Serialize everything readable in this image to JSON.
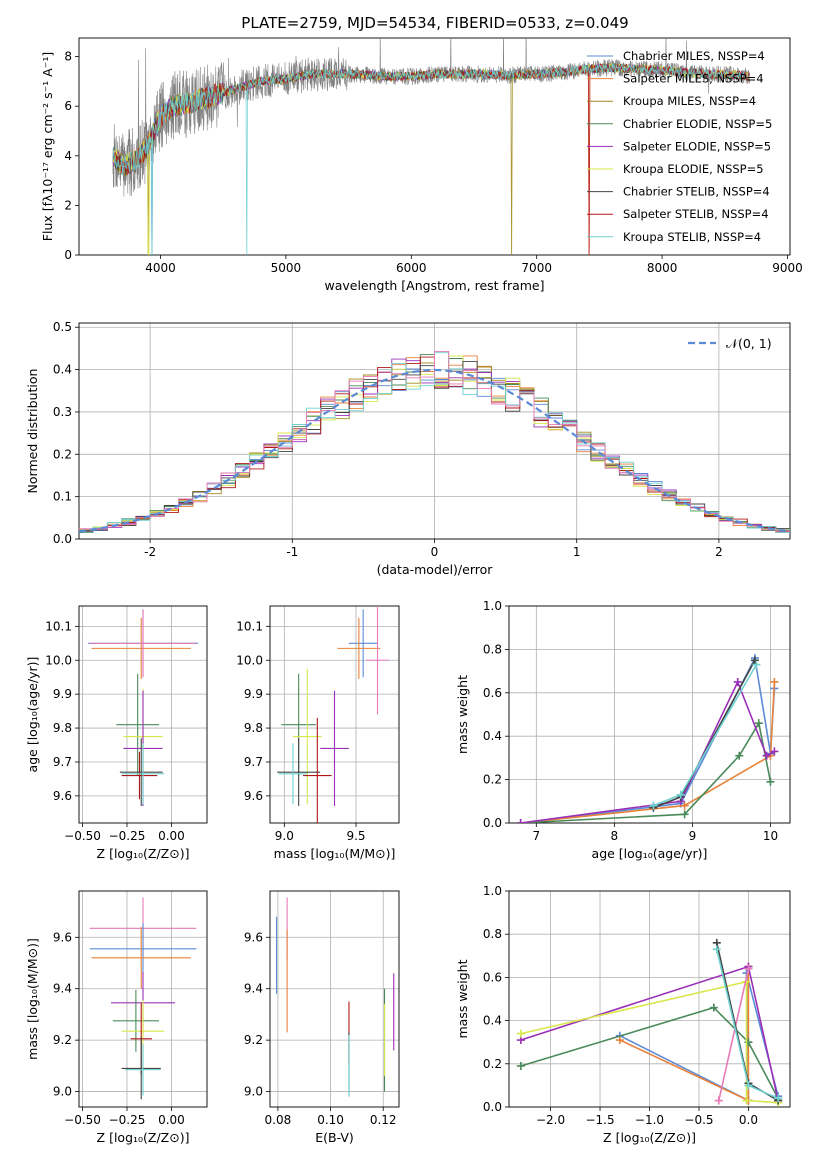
{
  "figure": {
    "title": "PLATE=2759, MJD=54534, FIBERID=0533, z=0.049"
  },
  "palette": {
    "axis": "#000000",
    "grid": "#b0b0b0",
    "spectrum_data": "#808080",
    "gauss": "#5b8bd6"
  },
  "chart_data": [
    {
      "id": "spectrum",
      "type": "line",
      "xlabel": "wavelength [Angstrom, rest frame]",
      "ylabel": "Flux [fλ10⁻¹⁷ erg cm⁻² s⁻¹ A⁻¹]",
      "xlim": [
        3350,
        9020
      ],
      "ylim": [
        0,
        8.75
      ],
      "xticks": [
        4000,
        5000,
        6000,
        7000,
        8000,
        9000
      ],
      "yticks": [
        0,
        2,
        4,
        6,
        8
      ],
      "grid": false,
      "legend_position": "top-right",
      "legend": [
        {
          "name": "Chabrier MILES, NSSP=4",
          "color": "#5b8bd6"
        },
        {
          "name": "Salpeter MILES, NSSP=4",
          "color": "#e8823a"
        },
        {
          "name": "Kroupa MILES, NSSP=4",
          "color": "#a0891e"
        },
        {
          "name": "Chabrier ELODIE, NSSP=5",
          "color": "#4a8a5a"
        },
        {
          "name": "Salpeter ELODIE, NSSP=5",
          "color": "#9b30b8"
        },
        {
          "name": "Kroupa ELODIE, NSSP=5",
          "color": "#d8e84a"
        },
        {
          "name": "Chabrier STELIB, NSSP=4",
          "color": "#444444"
        },
        {
          "name": "Salpeter STELIB, NSSP=4",
          "color": "#b01818"
        },
        {
          "name": "Kroupa STELIB, NSSP=4",
          "color": "#6fd0d0"
        }
      ],
      "continuum": {
        "x": [
          3620,
          3700,
          3800,
          3900,
          4000,
          4100,
          4200,
          4400,
          4600,
          4800,
          5000,
          5200,
          5500,
          5800,
          6000,
          6200,
          6500,
          6800,
          7000,
          7200,
          7400,
          7600,
          7800,
          8000,
          8200,
          8400,
          8600,
          8700
        ],
        "y": [
          4.0,
          3.6,
          3.8,
          4.4,
          5.6,
          6.0,
          6.1,
          6.4,
          6.7,
          7.0,
          7.1,
          7.3,
          7.3,
          7.2,
          7.2,
          7.3,
          7.3,
          7.25,
          7.3,
          7.35,
          7.5,
          7.55,
          7.5,
          7.45,
          7.35,
          7.3,
          7.25,
          7.2
        ]
      }
    },
    {
      "id": "residuals",
      "type": "line",
      "xlabel": "(data-model)/error",
      "ylabel": "Normed distribution",
      "xlim": [
        -2.5,
        2.5
      ],
      "ylim": [
        0,
        0.51
      ],
      "xticks": [
        -2,
        -1,
        0,
        1,
        2
      ],
      "yticks": [
        0.0,
        0.1,
        0.2,
        0.3,
        0.4,
        0.5
      ],
      "grid": true,
      "legend_position": "top-right",
      "gaussian_label": "𝒩(0, 1)"
    },
    {
      "id": "age_vs_Z",
      "type": "scatter",
      "xlabel": "Z [log₁₀(Z/Z⊙)]",
      "ylabel": "age  [log₁₀(age/yr)]",
      "xlim": [
        -0.52,
        0.2
      ],
      "ylim": [
        9.52,
        10.16
      ],
      "xticks": [
        -0.5,
        -0.25,
        0.0
      ],
      "xticklabels": [
        "−0.50",
        "−0.25",
        "0.00"
      ],
      "yticks": [
        9.6,
        9.7,
        9.8,
        9.9,
        10.0,
        10.1
      ],
      "grid": true,
      "points": [
        {
          "color": "#5b8bd6",
          "x": -0.16,
          "xerr": 0.31,
          "y": 10.05,
          "yerr": 0.1
        },
        {
          "color": "#e8823a",
          "x": -0.17,
          "xerr": 0.28,
          "y": 10.035,
          "yerr": 0.09
        },
        {
          "color": "#e87ab8",
          "x": -0.16,
          "xerr": 0.3,
          "y": 10.05,
          "yerr": 0.1
        },
        {
          "color": "#4a8a5a",
          "x": -0.19,
          "xerr": 0.12,
          "y": 9.81,
          "yerr": 0.15
        },
        {
          "color": "#d8e84a",
          "x": -0.16,
          "xerr": 0.11,
          "y": 9.775,
          "yerr": 0.14
        },
        {
          "color": "#9b30b8",
          "x": -0.16,
          "xerr": 0.11,
          "y": 9.74,
          "yerr": 0.17
        },
        {
          "color": "#444444",
          "x": -0.17,
          "xerr": 0.12,
          "y": 9.67,
          "yerr": 0.1
        },
        {
          "color": "#b01818",
          "x": -0.18,
          "xerr": 0.1,
          "y": 9.66,
          "yerr": 0.07
        },
        {
          "color": "#6fd0d0",
          "x": -0.16,
          "xerr": 0.12,
          "y": 9.665,
          "yerr": 0.09
        }
      ]
    },
    {
      "id": "age_vs_mass",
      "type": "scatter",
      "xlabel": "mass [log₁₀(M/M⊙)]",
      "ylabel": "",
      "xlim": [
        8.9,
        9.8
      ],
      "ylim": [
        9.52,
        10.16
      ],
      "xticks": [
        9.0,
        9.5
      ],
      "xticklabels": [
        "9.0",
        "9.5"
      ],
      "yticks": [
        9.6,
        9.7,
        9.8,
        9.9,
        10.0,
        10.1
      ],
      "grid": true,
      "points": [
        {
          "color": "#5b8bd6",
          "x": 9.55,
          "xerr": 0.1,
          "y": 10.05,
          "yerr": 0.1
        },
        {
          "color": "#e8823a",
          "x": 9.52,
          "xerr": 0.15,
          "y": 10.035,
          "yerr": 0.09
        },
        {
          "color": "#e87ab8",
          "x": 9.65,
          "xerr": 0.08,
          "y": 10.0,
          "yerr": 0.16
        },
        {
          "color": "#4a8a5a",
          "x": 9.1,
          "xerr": 0.12,
          "y": 9.81,
          "yerr": 0.15
        },
        {
          "color": "#d8e84a",
          "x": 9.16,
          "xerr": 0.1,
          "y": 9.775,
          "yerr": 0.2
        },
        {
          "color": "#9b30b8",
          "x": 9.35,
          "xerr": 0.1,
          "y": 9.74,
          "yerr": 0.17
        },
        {
          "color": "#444444",
          "x": 9.1,
          "xerr": 0.15,
          "y": 9.67,
          "yerr": 0.1
        },
        {
          "color": "#b01818",
          "x": 9.23,
          "xerr": 0.1,
          "y": 9.66,
          "yerr": 0.17
        },
        {
          "color": "#6fd0d0",
          "x": 9.06,
          "xerr": 0.1,
          "y": 9.665,
          "yerr": 0.09
        }
      ]
    },
    {
      "id": "weight_vs_age",
      "type": "line",
      "xlabel": "age  [log₁₀(age/yr)]",
      "ylabel": "mass weight",
      "xlim": [
        6.65,
        10.25
      ],
      "ylim": [
        0,
        1.0
      ],
      "xticks": [
        7,
        8,
        9,
        10
      ],
      "yticks": [
        0.0,
        0.2,
        0.4,
        0.6,
        0.8,
        1.0
      ],
      "grid": true,
      "series": [
        {
          "color": "#5b8bd6",
          "points": [
            [
              6.8,
              0.0
            ],
            [
              8.85,
              0.09
            ],
            [
              9.8,
              0.76
            ],
            [
              10.0,
              0.32
            ],
            [
              10.05,
              0.62
            ]
          ]
        },
        {
          "color": "#e8823a",
          "points": [
            [
              6.8,
              0.0
            ],
            [
              8.9,
              0.08
            ],
            [
              10.0,
              0.31
            ],
            [
              10.05,
              0.65
            ]
          ]
        },
        {
          "color": "#4a8a5a",
          "points": [
            [
              6.8,
              0.0
            ],
            [
              8.9,
              0.04
            ],
            [
              9.6,
              0.31
            ],
            [
              9.85,
              0.46
            ],
            [
              10.0,
              0.19
            ]
          ]
        },
        {
          "color": "#9b30b8",
          "points": [
            [
              6.8,
              0.0
            ],
            [
              8.85,
              0.1
            ],
            [
              9.58,
              0.65
            ],
            [
              9.95,
              0.31
            ],
            [
              10.05,
              0.33
            ]
          ]
        },
        {
          "color": "#444444",
          "points": [
            [
              8.5,
              0.07
            ],
            [
              8.85,
              0.12
            ],
            [
              9.8,
              0.75
            ]
          ]
        },
        {
          "color": "#6fd0d0",
          "points": [
            [
              8.5,
              0.08
            ],
            [
              8.85,
              0.13
            ],
            [
              9.82,
              0.73
            ]
          ]
        }
      ]
    },
    {
      "id": "mass_vs_Z",
      "type": "scatter",
      "xlabel": "Z [log₁₀(Z/Z⊙)]",
      "ylabel": "mass [log₁₀(M/M⊙)]",
      "xlim": [
        -0.52,
        0.2
      ],
      "ylim": [
        8.94,
        9.78
      ],
      "xticks": [
        -0.5,
        -0.25,
        0.0
      ],
      "xticklabels": [
        "−0.50",
        "−0.25",
        "0.00"
      ],
      "yticks": [
        9.0,
        9.2,
        9.4,
        9.6
      ],
      "grid": true,
      "points": [
        {
          "color": "#e87ab8",
          "x": -0.16,
          "xerr": 0.3,
          "y": 9.635,
          "yerr": 0.12
        },
        {
          "color": "#5b8bd6",
          "x": -0.16,
          "xerr": 0.3,
          "y": 9.555,
          "yerr": 0.1
        },
        {
          "color": "#e8823a",
          "x": -0.17,
          "xerr": 0.28,
          "y": 9.52,
          "yerr": 0.12
        },
        {
          "color": "#9b30b8",
          "x": -0.16,
          "xerr": 0.18,
          "y": 9.345,
          "yerr": 0.12
        },
        {
          "color": "#4a8a5a",
          "x": -0.2,
          "xerr": 0.13,
          "y": 9.275,
          "yerr": 0.12
        },
        {
          "color": "#d8e84a",
          "x": -0.16,
          "xerr": 0.12,
          "y": 9.235,
          "yerr": 0.12
        },
        {
          "color": "#b01818",
          "x": -0.17,
          "xerr": 0.06,
          "y": 9.205,
          "yerr": 0.14
        },
        {
          "color": "#444444",
          "x": -0.17,
          "xerr": 0.11,
          "y": 9.09,
          "yerr": 0.12
        },
        {
          "color": "#6fd0d0",
          "x": -0.16,
          "xerr": 0.1,
          "y": 9.085,
          "yerr": 0.1
        }
      ]
    },
    {
      "id": "mass_vs_EBV",
      "type": "scatter",
      "xlabel": "E(B-V)",
      "ylabel": "",
      "xlim": [
        0.077,
        0.126
      ],
      "ylim": [
        8.94,
        9.78
      ],
      "xticks": [
        0.08,
        0.1,
        0.12
      ],
      "xticklabels": [
        "0.08",
        "0.10",
        "0.12"
      ],
      "yticks": [
        9.0,
        9.2,
        9.4,
        9.6
      ],
      "grid": true,
      "points": [
        {
          "color": "#e87ab8",
          "x": 0.0835,
          "xerr": 0,
          "y": 9.635,
          "yerr": 0.12
        },
        {
          "color": "#e8823a",
          "x": 0.0835,
          "xerr": 0,
          "y": 9.43,
          "yerr": 0.2
        },
        {
          "color": "#5b8bd6",
          "x": 0.0795,
          "xerr": 0,
          "y": 9.53,
          "yerr": 0.15
        },
        {
          "color": "#9b30b8",
          "x": 0.124,
          "xerr": 0,
          "y": 9.31,
          "yerr": 0.15
        },
        {
          "color": "#4a8a5a",
          "x": 0.1205,
          "xerr": 0,
          "y": 9.2,
          "yerr": 0.2
        },
        {
          "color": "#d8e84a",
          "x": 0.1205,
          "xerr": 0,
          "y": 9.2,
          "yerr": 0.14
        },
        {
          "color": "#b01818",
          "x": 0.107,
          "xerr": 0,
          "y": 9.23,
          "yerr": 0.12
        },
        {
          "color": "#444444",
          "x": 0.107,
          "xerr": 0,
          "y": 9.11,
          "yerr": 0.12
        },
        {
          "color": "#6fd0d0",
          "x": 0.107,
          "xerr": 0,
          "y": 9.1,
          "yerr": 0.12
        }
      ]
    },
    {
      "id": "weight_vs_Z",
      "type": "line",
      "xlabel": "Z [log₁₀(Z/Z⊙)]",
      "ylabel": "mass weight",
      "xlim": [
        -2.42,
        0.42
      ],
      "ylim": [
        0,
        1.0
      ],
      "xticks": [
        -2.0,
        -1.5,
        -1.0,
        -0.5,
        0.0
      ],
      "xticklabels": [
        "−2.0",
        "−1.5",
        "−1.0",
        "−0.5",
        "0.0"
      ],
      "yticks": [
        0.0,
        0.2,
        0.4,
        0.6,
        0.8,
        1.0
      ],
      "grid": true,
      "series": [
        {
          "color": "#5b8bd6",
          "points": [
            [
              -1.3,
              0.33
            ],
            [
              0.0,
              0.03
            ],
            [
              -0.02,
              0.62
            ],
            [
              0.3,
              0.05
            ]
          ]
        },
        {
          "color": "#e8823a",
          "points": [
            [
              -1.3,
              0.31
            ],
            [
              0.0,
              0.03
            ],
            [
              0.0,
              0.65
            ]
          ]
        },
        {
          "color": "#4a8a5a",
          "points": [
            [
              -2.3,
              0.19
            ],
            [
              -0.35,
              0.46
            ],
            [
              0.0,
              0.3
            ],
            [
              0.3,
              0.04
            ]
          ]
        },
        {
          "color": "#9b30b8",
          "points": [
            [
              -2.3,
              0.31
            ],
            [
              0.0,
              0.65
            ],
            [
              0.3,
              0.03
            ]
          ]
        },
        {
          "color": "#d8e84a",
          "points": [
            [
              -2.3,
              0.34
            ],
            [
              -0.02,
              0.58
            ],
            [
              -0.02,
              0.03
            ],
            [
              0.3,
              0.02
            ]
          ]
        },
        {
          "color": "#e87ab8",
          "points": [
            [
              -0.3,
              0.03
            ],
            [
              0.0,
              0.64
            ]
          ]
        },
        {
          "color": "#444444",
          "points": [
            [
              -0.32,
              0.76
            ],
            [
              0.0,
              0.11
            ],
            [
              0.3,
              0.03
            ]
          ]
        },
        {
          "color": "#6fd0d0",
          "points": [
            [
              -0.32,
              0.73
            ],
            [
              0.0,
              0.1
            ],
            [
              0.3,
              0.04
            ]
          ]
        }
      ]
    }
  ]
}
